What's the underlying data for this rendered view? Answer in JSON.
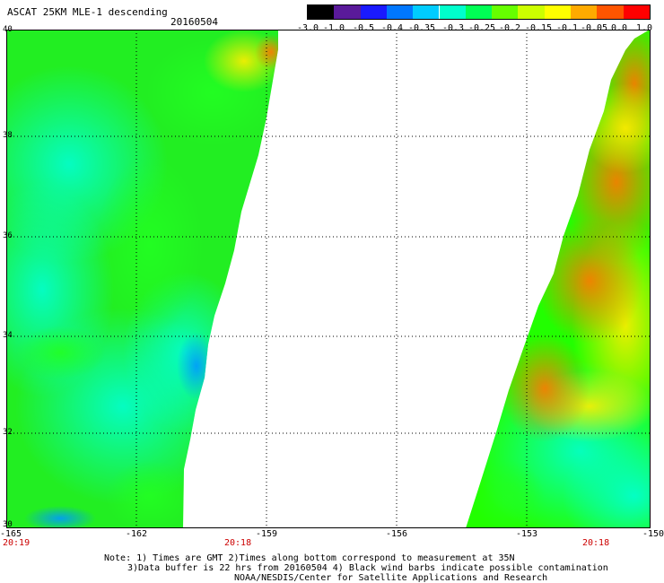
{
  "header": {
    "title": "ASCAT 25KM MLE-1 descending",
    "date": "20160504"
  },
  "colorbar": {
    "labels": [
      "-3.0",
      "-1.0",
      "-0.5",
      "-0.4",
      "-0.35",
      "-0.3",
      "-0.25",
      "-0.2",
      "-0.15",
      "-0.1",
      "-0.05",
      "0.0",
      "1.0"
    ],
    "colors": [
      "#000000",
      "#5a1a9a",
      "#1a1aff",
      "#0077ff",
      "#00ccff",
      "#00ffcc",
      "#00ff55",
      "#66ff00",
      "#ccff00",
      "#ffff00",
      "#ffaa00",
      "#ff5500",
      "#ff0000"
    ]
  },
  "map": {
    "lat_labels": [
      "40",
      "38",
      "36",
      "34",
      "32",
      "30"
    ],
    "lon_labels": [
      "-165",
      "-162",
      "-159",
      "-156",
      "-153",
      "-150"
    ],
    "time_labels": [
      "20:19",
      "20:18",
      "20:18"
    ]
  },
  "notes": {
    "line1": "Note: 1) Times are GMT 2)Times along bottom correspond to measurement at 35N",
    "line2": "3)Data buffer is 22 hrs from 20160504 4) Black wind barbs indicate possible contamination",
    "line3": "NOAA/NESDIS/Center for Satellite Applications and Research"
  }
}
